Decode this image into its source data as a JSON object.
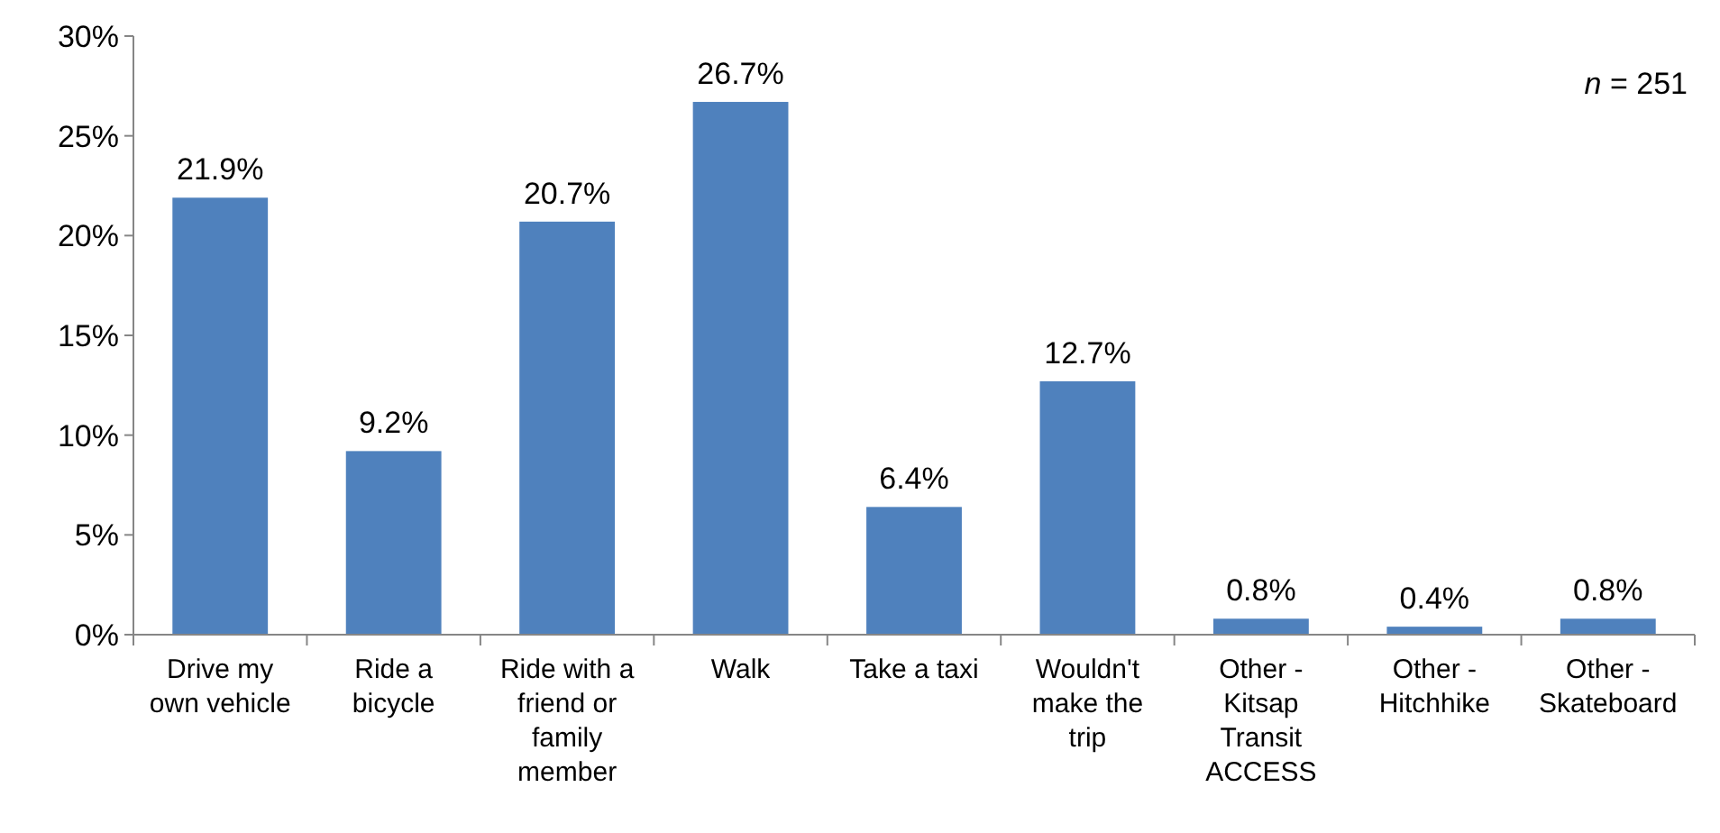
{
  "chart_data": {
    "type": "bar",
    "categories": [
      "Drive my own vehicle",
      "Ride a bicycle",
      "Ride with a friend or family member",
      "Walk",
      "Take a taxi",
      "Wouldn't make the trip",
      "Other - Kitsap Transit ACCESS",
      "Other - Hitchhike",
      "Other - Skateboard"
    ],
    "values": [
      21.9,
      9.2,
      20.7,
      26.7,
      6.4,
      12.7,
      0.8,
      0.4,
      0.8
    ],
    "value_labels": [
      "21.9%",
      "9.2%",
      "20.7%",
      "26.7%",
      "6.4%",
      "12.7%",
      "0.8%",
      "0.4%",
      "0.8%"
    ],
    "color": "#4f81bd",
    "ylim": [
      0,
      30
    ],
    "yticks": [
      {
        "value": 0,
        "label": "0%"
      },
      {
        "value": 5,
        "label": "5%"
      },
      {
        "value": 10,
        "label": "10%"
      },
      {
        "value": 15,
        "label": "15%"
      },
      {
        "value": 20,
        "label": "20%"
      },
      {
        "value": 25,
        "label": "25%"
      },
      {
        "value": 30,
        "label": "30%"
      }
    ],
    "annotations": [
      "n = 251"
    ]
  }
}
